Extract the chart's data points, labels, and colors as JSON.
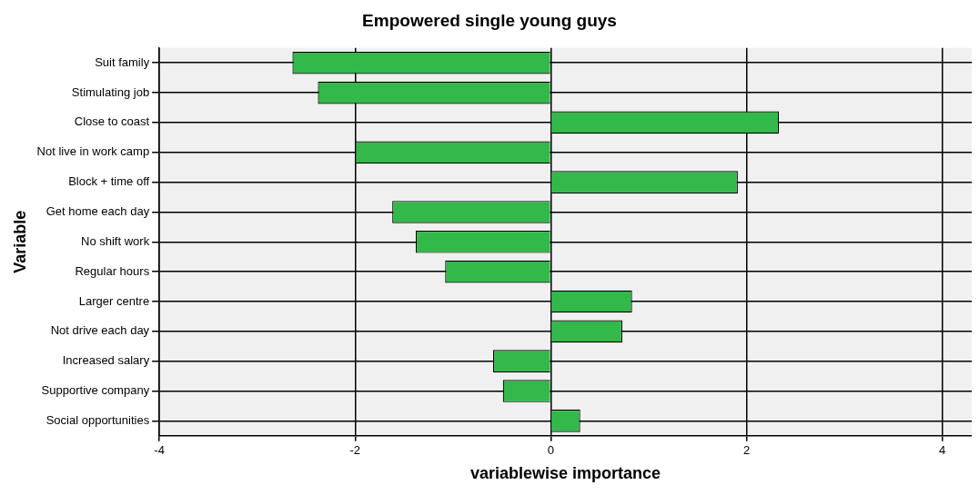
{
  "chart_data": {
    "type": "bar",
    "orientation": "horizontal",
    "title": "Empowered single young guys",
    "xlabel": "variablewise importance",
    "ylabel": "Variable",
    "categories": [
      "Suit family",
      "Stimulating job",
      "Close to coast",
      "Not live in work camp",
      "Block + time off",
      "Get home each day",
      "No shift work",
      "Regular hours",
      "Larger centre",
      "Not drive each day",
      "Increased salary",
      "Supportive company",
      "Social opportunities"
    ],
    "values": [
      -2.64,
      -2.38,
      2.33,
      -2.0,
      1.91,
      -1.62,
      -1.38,
      -1.08,
      0.83,
      0.73,
      -0.59,
      -0.49,
      0.3
    ],
    "color": "#33b84a",
    "xlim": [
      -4,
      4.3
    ],
    "xticks": [
      -4,
      -2,
      0,
      2,
      4
    ],
    "grid": true
  }
}
